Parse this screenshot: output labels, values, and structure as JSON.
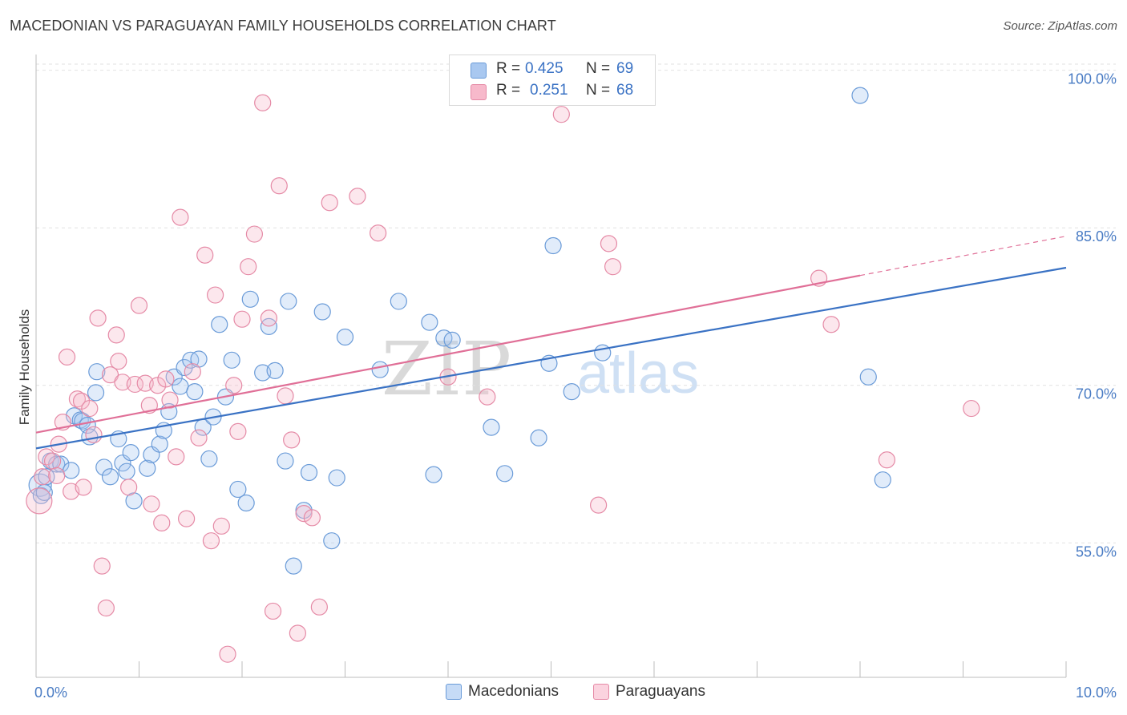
{
  "title": "MACEDONIAN VS PARAGUAYAN FAMILY HOUSEHOLDS CORRELATION CHART",
  "source": "Source: ZipAtlas.com",
  "watermark": {
    "zip": "ZIP",
    "atlas": "atlas"
  },
  "legend": {
    "rows": [
      {
        "r_label": "R =",
        "r_value": "0.425",
        "n_label": "N =",
        "n_value": "69",
        "color": "#a9c8f0",
        "border": "#6a9bd8"
      },
      {
        "r_label": "R =",
        "r_value": "0.251",
        "n_label": "N =",
        "n_value": "68",
        "color": "#f7b9cb",
        "border": "#e58aa6"
      }
    ]
  },
  "bottom_legend": [
    {
      "label": "Macedonians",
      "color": "#c6dbf6",
      "border": "#6a9bd8"
    },
    {
      "label": "Paraguayans",
      "color": "#fbd3df",
      "border": "#e58aa6"
    }
  ],
  "chart_data": {
    "type": "scatter",
    "title": "MACEDONIAN VS PARAGUAYAN FAMILY HOUSEHOLDS CORRELATION CHART",
    "xlabel": "",
    "ylabel": "Family Households",
    "xlim": [
      0,
      10
    ],
    "ylim": [
      42.2,
      101.5
    ],
    "x_tick_labels": [
      {
        "value": 0,
        "label": "0.0%"
      },
      {
        "value": 10,
        "label": "10.0%"
      }
    ],
    "y_ticks": [
      {
        "value": 55,
        "label": "55.0%"
      },
      {
        "value": 70,
        "label": "70.0%"
      },
      {
        "value": 85,
        "label": "85.0%"
      },
      {
        "value": 100,
        "label": "100.0%"
      }
    ],
    "series": [
      {
        "name": "Macedonians",
        "color": "#6a9bd8",
        "fill": "#a9c8f0",
        "line_color": "#3a72c4",
        "trend": {
          "x0": 0,
          "y0": 64.0,
          "x1": 10,
          "y1": 81.2,
          "dashed_from": null
        },
        "points": [
          [
            0.04,
            60.5,
            14
          ],
          [
            0.05,
            59.5,
            10
          ],
          [
            0.08,
            59.8,
            10
          ],
          [
            0.1,
            61.3,
            10
          ],
          [
            0.14,
            62.8,
            10
          ],
          [
            0.2,
            62.5,
            10
          ],
          [
            0.24,
            62.5,
            10
          ],
          [
            0.34,
            61.9,
            10
          ],
          [
            0.37,
            67.1,
            10
          ],
          [
            0.43,
            66.7,
            10
          ],
          [
            0.45,
            66.6,
            10
          ],
          [
            0.5,
            66.2,
            10
          ],
          [
            0.52,
            65.1,
            10
          ],
          [
            0.58,
            69.3,
            10
          ],
          [
            0.59,
            71.3,
            10
          ],
          [
            0.66,
            62.2,
            10
          ],
          [
            0.72,
            61.3,
            10
          ],
          [
            0.8,
            64.9,
            10
          ],
          [
            0.84,
            62.6,
            10
          ],
          [
            0.88,
            61.8,
            10
          ],
          [
            0.92,
            63.6,
            10
          ],
          [
            0.95,
            59.0,
            10
          ],
          [
            1.08,
            62.1,
            10
          ],
          [
            1.12,
            63.4,
            10
          ],
          [
            1.2,
            64.4,
            10
          ],
          [
            1.24,
            65.7,
            10
          ],
          [
            1.29,
            67.5,
            10
          ],
          [
            1.34,
            70.8,
            10
          ],
          [
            1.4,
            69.9,
            10
          ],
          [
            1.44,
            71.7,
            10
          ],
          [
            1.5,
            72.4,
            10
          ],
          [
            1.54,
            69.4,
            10
          ],
          [
            1.58,
            72.5,
            10
          ],
          [
            1.62,
            66.0,
            10
          ],
          [
            1.68,
            63.0,
            10
          ],
          [
            1.72,
            67.0,
            10
          ],
          [
            1.78,
            75.8,
            10
          ],
          [
            1.84,
            68.9,
            10
          ],
          [
            1.9,
            72.4,
            10
          ],
          [
            1.96,
            60.1,
            10
          ],
          [
            2.04,
            58.8,
            10
          ],
          [
            2.08,
            78.2,
            10
          ],
          [
            2.2,
            71.2,
            10
          ],
          [
            2.26,
            75.6,
            10
          ],
          [
            2.32,
            71.4,
            10
          ],
          [
            2.42,
            62.8,
            10
          ],
          [
            2.45,
            78.0,
            10
          ],
          [
            2.5,
            52.8,
            10
          ],
          [
            2.6,
            58.1,
            10
          ],
          [
            2.65,
            61.7,
            10
          ],
          [
            2.78,
            77.0,
            10
          ],
          [
            2.87,
            55.2,
            10
          ],
          [
            2.92,
            61.2,
            10
          ],
          [
            3.0,
            74.6,
            10
          ],
          [
            3.34,
            71.5,
            10
          ],
          [
            3.52,
            78.0,
            10
          ],
          [
            3.82,
            76.0,
            10
          ],
          [
            3.86,
            61.5,
            10
          ],
          [
            3.96,
            74.5,
            10
          ],
          [
            4.04,
            74.3,
            10
          ],
          [
            4.42,
            66.0,
            10
          ],
          [
            4.55,
            61.6,
            10
          ],
          [
            4.88,
            65.0,
            10
          ],
          [
            4.98,
            72.1,
            10
          ],
          [
            5.02,
            83.3,
            10
          ],
          [
            5.2,
            69.4,
            10
          ],
          [
            5.5,
            73.1,
            10
          ],
          [
            8.0,
            97.6,
            10
          ],
          [
            8.08,
            70.8,
            10
          ],
          [
            8.22,
            61.0,
            10
          ]
        ]
      },
      {
        "name": "Paraguayans",
        "color": "#e58aa6",
        "fill": "#f7b9cb",
        "line_color": "#e06f97",
        "trend": {
          "x0": 0,
          "y0": 65.5,
          "x1": 10,
          "y1": 84.2,
          "dashed_from": 8.0
        },
        "points": [
          [
            0.03,
            59.0,
            16
          ],
          [
            0.06,
            61.3,
            10
          ],
          [
            0.1,
            63.2,
            10
          ],
          [
            0.16,
            62.8,
            10
          ],
          [
            0.2,
            61.4,
            10
          ],
          [
            0.22,
            64.4,
            10
          ],
          [
            0.26,
            66.5,
            10
          ],
          [
            0.3,
            72.7,
            10
          ],
          [
            0.34,
            59.9,
            10
          ],
          [
            0.4,
            68.7,
            10
          ],
          [
            0.44,
            68.5,
            10
          ],
          [
            0.46,
            60.3,
            10
          ],
          [
            0.52,
            67.8,
            10
          ],
          [
            0.56,
            65.3,
            10
          ],
          [
            0.6,
            76.4,
            10
          ],
          [
            0.64,
            52.8,
            10
          ],
          [
            0.68,
            48.8,
            10
          ],
          [
            0.72,
            71.0,
            10
          ],
          [
            0.78,
            74.8,
            10
          ],
          [
            0.8,
            72.3,
            10
          ],
          [
            0.84,
            70.3,
            10
          ],
          [
            0.9,
            60.3,
            10
          ],
          [
            0.96,
            70.1,
            10
          ],
          [
            1.0,
            77.6,
            10
          ],
          [
            1.06,
            70.2,
            10
          ],
          [
            1.1,
            68.1,
            10
          ],
          [
            1.12,
            58.7,
            10
          ],
          [
            1.18,
            70.0,
            10
          ],
          [
            1.22,
            56.9,
            10
          ],
          [
            1.26,
            70.6,
            10
          ],
          [
            1.3,
            68.6,
            10
          ],
          [
            1.36,
            63.2,
            10
          ],
          [
            1.4,
            86.0,
            10
          ],
          [
            1.46,
            57.3,
            10
          ],
          [
            1.52,
            71.3,
            10
          ],
          [
            1.58,
            65.0,
            10
          ],
          [
            1.64,
            82.4,
            10
          ],
          [
            1.7,
            55.2,
            10
          ],
          [
            1.74,
            78.6,
            10
          ],
          [
            1.8,
            56.6,
            10
          ],
          [
            1.86,
            44.4,
            10
          ],
          [
            1.92,
            70.0,
            10
          ],
          [
            1.96,
            65.6,
            10
          ],
          [
            2.0,
            76.3,
            10
          ],
          [
            2.06,
            81.3,
            10
          ],
          [
            2.12,
            84.4,
            10
          ],
          [
            2.2,
            96.9,
            10
          ],
          [
            2.26,
            76.4,
            10
          ],
          [
            2.3,
            48.5,
            10
          ],
          [
            2.36,
            89.0,
            10
          ],
          [
            2.42,
            69.0,
            10
          ],
          [
            2.48,
            64.8,
            10
          ],
          [
            2.54,
            46.4,
            10
          ],
          [
            2.6,
            57.8,
            10
          ],
          [
            2.68,
            57.4,
            10
          ],
          [
            2.75,
            48.9,
            10
          ],
          [
            2.85,
            87.4,
            10
          ],
          [
            3.12,
            88.0,
            10
          ],
          [
            3.32,
            84.5,
            10
          ],
          [
            4.0,
            70.8,
            10
          ],
          [
            4.38,
            68.9,
            10
          ],
          [
            5.1,
            95.8,
            10
          ],
          [
            5.46,
            58.6,
            10
          ],
          [
            5.56,
            83.5,
            10
          ],
          [
            5.6,
            81.3,
            10
          ],
          [
            7.6,
            80.2,
            10
          ],
          [
            7.72,
            75.8,
            10
          ],
          [
            8.26,
            62.9,
            10
          ],
          [
            9.08,
            67.8,
            10
          ]
        ]
      }
    ]
  }
}
